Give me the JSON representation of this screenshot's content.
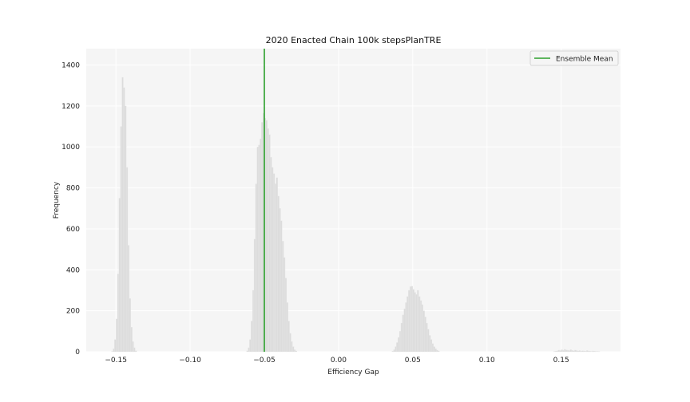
{
  "chart_data": {
    "type": "histogram",
    "title": "2020 Enacted Chain 100k stepsPlanTRE",
    "xlabel": "Efficiency Gap",
    "ylabel": "Frequency",
    "xlim": [
      -0.17,
      0.19
    ],
    "ylim": [
      0,
      1480
    ],
    "xticks": [
      -0.15,
      -0.1,
      -0.05,
      0.0,
      0.05,
      0.1,
      0.15
    ],
    "xtick_labels": [
      "−0.15",
      "−0.10",
      "−0.05",
      "0.00",
      "0.05",
      "0.10",
      "0.15"
    ],
    "yticks": [
      0,
      200,
      400,
      600,
      800,
      1000,
      1200,
      1400
    ],
    "ytick_labels": [
      "0",
      "200",
      "400",
      "600",
      "800",
      "1000",
      "1200",
      "1400"
    ],
    "grid": true,
    "legend": {
      "position": "top-right",
      "entries": [
        {
          "label": "Ensemble Mean",
          "color": "#2ca02c"
        }
      ]
    },
    "ensemble_mean": -0.05,
    "bar_color": "#dcdcdc",
    "background": "#f5f5f5",
    "mean_line_color": "#2ca02c",
    "distributions": [
      {
        "bin_width": 0.001,
        "bins_start": -0.153,
        "counts": [
          2,
          15,
          60,
          160,
          380,
          750,
          1100,
          1340,
          1290,
          1200,
          900,
          520,
          260,
          120,
          50,
          20,
          5
        ]
      },
      {
        "bin_width": 0.001,
        "bins_start": -0.062,
        "counts": [
          5,
          20,
          60,
          150,
          300,
          550,
          820,
          1000,
          1010,
          1040,
          1120,
          1165,
          1140,
          1130,
          1090,
          1060,
          950,
          900,
          870,
          820,
          850,
          760,
          700,
          640,
          540,
          460,
          360,
          240,
          150,
          90,
          50,
          25,
          10,
          4
        ]
      },
      {
        "bin_width": 0.001,
        "bins_start": 0.036,
        "counts": [
          3,
          10,
          25,
          45,
          70,
          100,
          140,
          180,
          210,
          240,
          270,
          300,
          318,
          320,
          305,
          290,
          280,
          300,
          270,
          250,
          230,
          200,
          170,
          140,
          110,
          80,
          60,
          40,
          25,
          15,
          8,
          4
        ]
      },
      {
        "bin_width": 0.001,
        "bins_start": 0.145,
        "counts": [
          2,
          3,
          5,
          8,
          6,
          10,
          7,
          12,
          9,
          8,
          6,
          10,
          7,
          5,
          8,
          6,
          4,
          6,
          3,
          5,
          4,
          3,
          6,
          4,
          3,
          2,
          4,
          3,
          2,
          2,
          1
        ]
      }
    ]
  }
}
